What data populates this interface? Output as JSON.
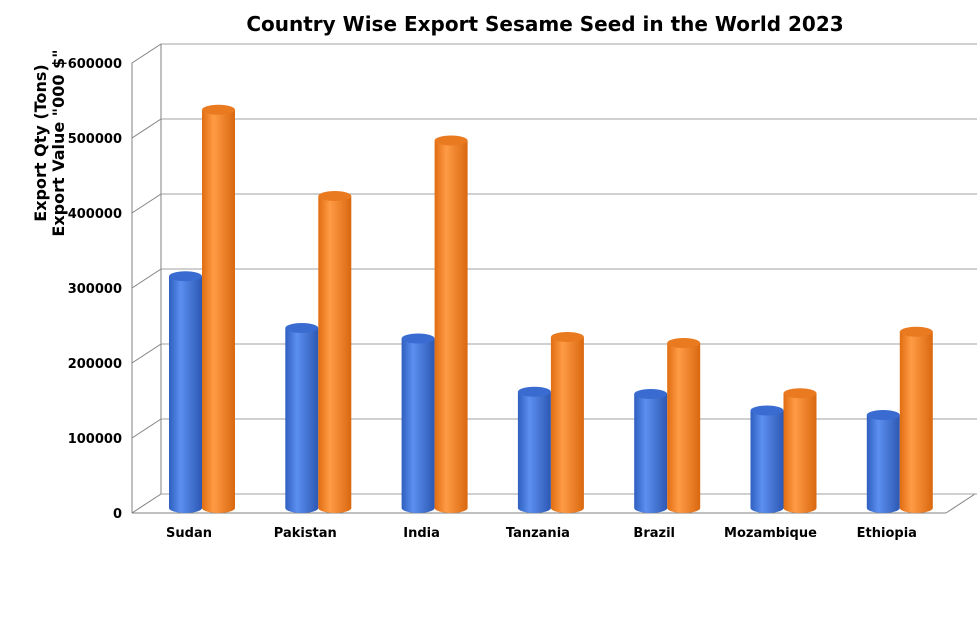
{
  "chart_data": {
    "type": "bar",
    "title": "Country Wise Export Sesame Seed in the World 2023",
    "ylabel_lines": [
      "Export Qty (Tons)",
      "Export Value \"000 $\""
    ],
    "xlabel": "",
    "categories": [
      "Sudan",
      "Pakistan",
      "India",
      "Tanzania",
      "Brazil",
      "Mozambique",
      "Ethiopia"
    ],
    "series": [
      {
        "color": "#3f73d8",
        "values": [
          309000,
          240000,
          226000,
          155000,
          152000,
          130000,
          124000
        ]
      },
      {
        "color": "#f58a2c",
        "values": [
          531000,
          416000,
          490000,
          228000,
          220000,
          153000,
          235000
        ]
      }
    ],
    "ylim": [
      0,
      600000
    ],
    "yticks": [
      "0",
      "100000",
      "200000",
      "300000",
      "400000",
      "500000",
      "600000"
    ],
    "grid": true,
    "legend": "none"
  }
}
